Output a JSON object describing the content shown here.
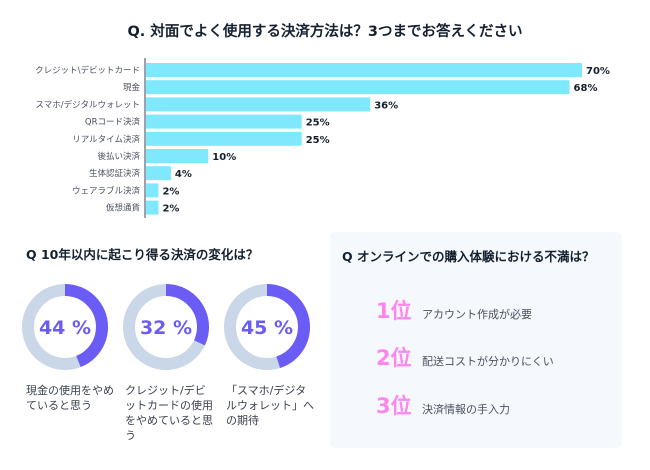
{
  "chart_data": [
    {
      "type": "bar",
      "orientation": "horizontal",
      "title": "Q. 対面でよく使用する決済方法は？3つまでお答えください",
      "categories": [
        "クレジット\\デビットカード",
        "現金",
        "スマホ/デジタルウォレット",
        "QRコード決済",
        "リアルタイム決済",
        "後払い決済",
        "生体認証決済",
        "ウェアラブル決済",
        "仮想通貨"
      ],
      "values": [
        70,
        68,
        36,
        25,
        25,
        10,
        4,
        2,
        2
      ],
      "value_suffix": "%",
      "bar_color": "#80e8fc",
      "xlim": [
        0,
        100
      ],
      "grid": false
    },
    {
      "type": "pie",
      "subtype": "donut",
      "title": "Q 10年以内に起こり得る決済の変化は？",
      "items": [
        {
          "value": 44,
          "label": "44 %",
          "caption": "現金の使用をやめていると思う"
        },
        {
          "value": 32,
          "label": "32 %",
          "caption": "クレジット/デビットカードの使用をやめていると思う"
        },
        {
          "value": 45,
          "label": "45 %",
          "caption": "「スマホ/デジタルウォレット」への期待"
        }
      ],
      "fill_color": "#6b5cf6",
      "track_color": "#c9d7e8"
    }
  ],
  "card": {
    "title": "Q オンラインでの購入体験における不満は？",
    "ranks": [
      {
        "rank": "1位",
        "text": "アカウント作成が必要"
      },
      {
        "rank": "2位",
        "text": "配送コストが分かりにくい"
      },
      {
        "rank": "3位",
        "text": "決済情報の手入力"
      }
    ],
    "rank_color": "#ff85ee"
  }
}
